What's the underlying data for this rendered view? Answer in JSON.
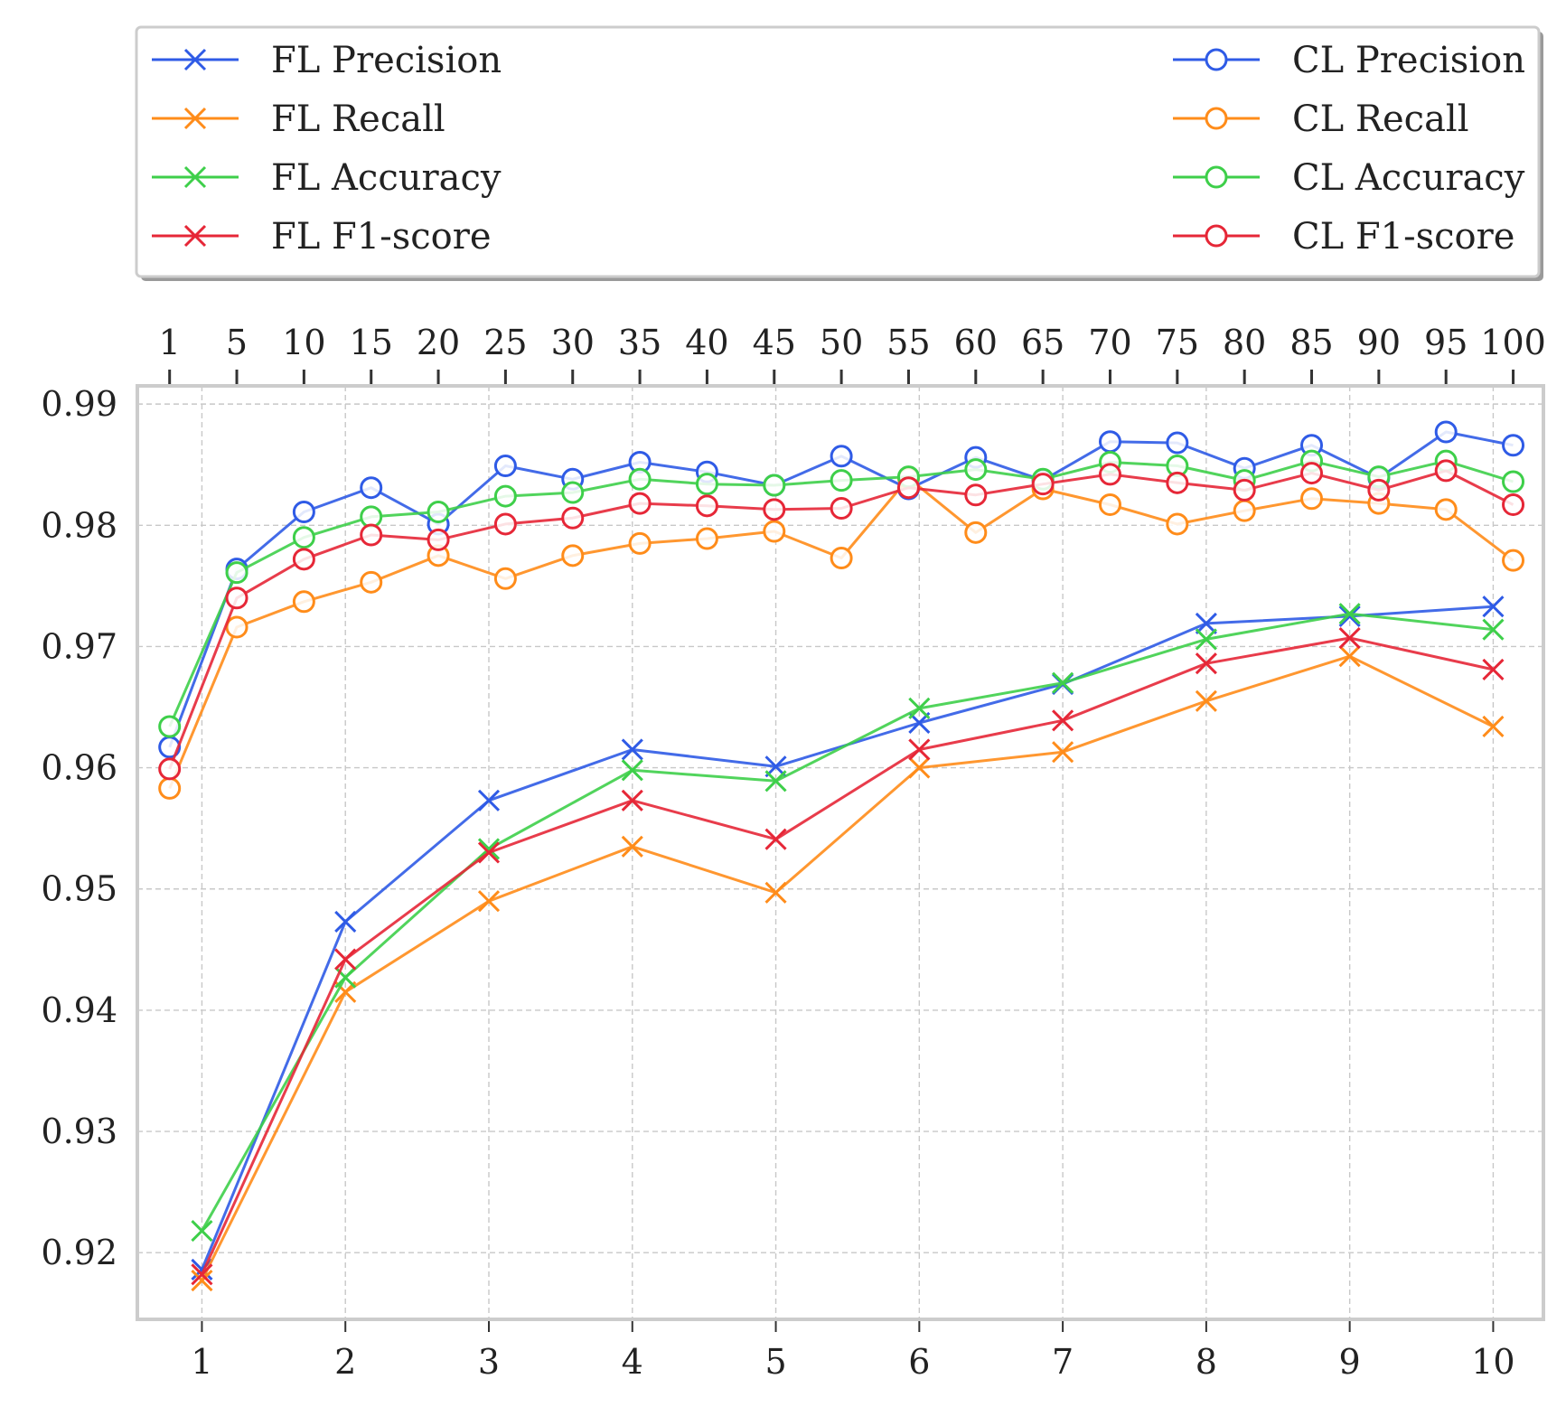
{
  "chart_data": {
    "type": "line",
    "grid": true,
    "legend_position": "top, above plot, two columns",
    "bottom_axis": {
      "categories": [
        1,
        2,
        3,
        4,
        5,
        6,
        7,
        8,
        9,
        10
      ],
      "range": [
        0.55,
        10.35
      ]
    },
    "top_axis": {
      "categories": [
        1,
        5,
        10,
        15,
        20,
        25,
        30,
        35,
        40,
        45,
        50,
        55,
        60,
        65,
        70,
        75,
        80,
        85,
        90,
        95,
        100
      ],
      "range": [
        0.52,
        21.45
      ]
    },
    "yaxis": {
      "ticks": [
        "0.92",
        "0.93",
        "0.94",
        "0.95",
        "0.96",
        "0.97",
        "0.98",
        "0.99"
      ],
      "tick_values": [
        0.92,
        0.93,
        0.94,
        0.95,
        0.96,
        0.97,
        0.98,
        0.99
      ],
      "range": [
        0.9145,
        0.9915
      ]
    },
    "series": [
      {
        "name": "FL Precision",
        "axis": "bottom",
        "marker": "x",
        "color": "#2f5be6",
        "values": [
          0.9186,
          0.9473,
          0.9573,
          0.9615,
          0.9601,
          0.9637,
          0.9669,
          0.9719,
          0.9725,
          0.9733
        ]
      },
      {
        "name": "FL Recall",
        "axis": "bottom",
        "marker": "x",
        "color": "#ff8c1a",
        "values": [
          0.9177,
          0.9415,
          0.949,
          0.9535,
          0.9497,
          0.96,
          0.9613,
          0.9655,
          0.9692,
          0.9634
        ]
      },
      {
        "name": "FL Accuracy",
        "axis": "bottom",
        "marker": "x",
        "color": "#3ecf4a",
        "values": [
          0.9218,
          0.9427,
          0.9533,
          0.9598,
          0.9589,
          0.9649,
          0.967,
          0.9706,
          0.9727,
          0.9714
        ]
      },
      {
        "name": "FL F1-score",
        "axis": "bottom",
        "marker": "x",
        "color": "#e62737",
        "values": [
          0.9182,
          0.9442,
          0.953,
          0.9573,
          0.9541,
          0.9615,
          0.9639,
          0.9686,
          0.9707,
          0.9681
        ]
      },
      {
        "name": "CL Precision",
        "axis": "top",
        "marker": "o",
        "color": "#2f5be6",
        "values": [
          0.9617,
          0.9764,
          0.9811,
          0.9831,
          0.9801,
          0.9849,
          0.9838,
          0.9852,
          0.9844,
          0.9833,
          0.9857,
          0.983,
          0.9856,
          0.9837,
          0.9869,
          0.9868,
          0.9847,
          0.9866,
          0.9839,
          0.9877,
          0.9866
        ]
      },
      {
        "name": "CL Recall",
        "axis": "top",
        "marker": "o",
        "color": "#ff8c1a",
        "values": [
          0.9583,
          0.9716,
          0.9737,
          0.9753,
          0.9775,
          0.9756,
          0.9775,
          0.9785,
          0.9789,
          0.9795,
          0.9773,
          0.9839,
          0.9794,
          0.983,
          0.9817,
          0.9801,
          0.9812,
          0.9822,
          0.9818,
          0.9813,
          0.9771
        ]
      },
      {
        "name": "CL Accuracy",
        "axis": "top",
        "marker": "o",
        "color": "#3ecf4a",
        "values": [
          0.9634,
          0.9761,
          0.979,
          0.9807,
          0.9811,
          0.9824,
          0.9827,
          0.9838,
          0.9834,
          0.9833,
          0.9837,
          0.984,
          0.9846,
          0.9838,
          0.9852,
          0.9849,
          0.9837,
          0.9853,
          0.984,
          0.9853,
          0.9836
        ]
      },
      {
        "name": "CL F1-score",
        "axis": "top",
        "marker": "o",
        "color": "#e62737",
        "values": [
          0.9599,
          0.974,
          0.9772,
          0.9792,
          0.9788,
          0.9801,
          0.9806,
          0.9818,
          0.9816,
          0.9813,
          0.9814,
          0.9831,
          0.9825,
          0.9834,
          0.9842,
          0.9835,
          0.9829,
          0.9843,
          0.9829,
          0.9845,
          0.9817
        ]
      }
    ]
  }
}
